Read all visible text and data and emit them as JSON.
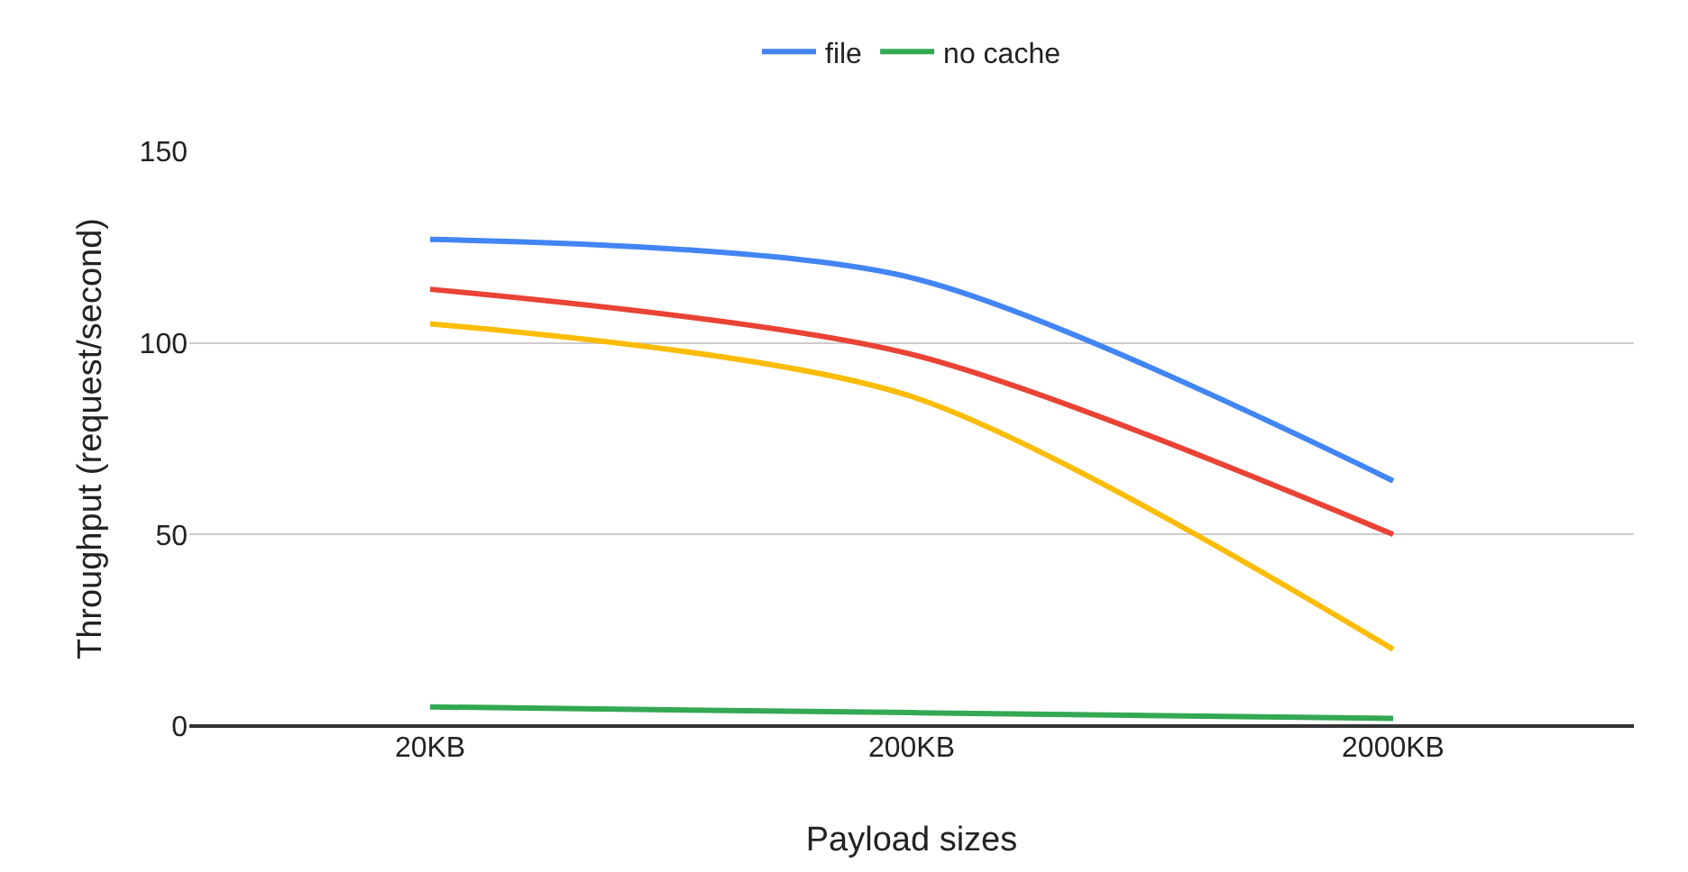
{
  "chart_data": {
    "type": "line",
    "xlabel": "Payload sizes",
    "ylabel": "Throughput (request/second)",
    "categories": [
      "20KB",
      "200KB",
      "2000KB"
    ],
    "series": [
      {
        "name": "file",
        "color": "#4285f4",
        "values": [
          127,
          117,
          64
        ]
      },
      {
        "color": "#ea4335",
        "values": [
          114,
          97,
          50
        ]
      },
      {
        "color": "#fbbc04",
        "values": [
          105,
          86,
          20
        ]
      },
      {
        "name": "no cache",
        "color": "#34a853",
        "values": [
          5,
          3.5,
          2
        ]
      }
    ],
    "ylim": [
      0,
      150
    ],
    "yticks": [
      0,
      50,
      100,
      150
    ],
    "grid": "y",
    "legend": "top",
    "marker": "none",
    "line_style": "solid"
  }
}
